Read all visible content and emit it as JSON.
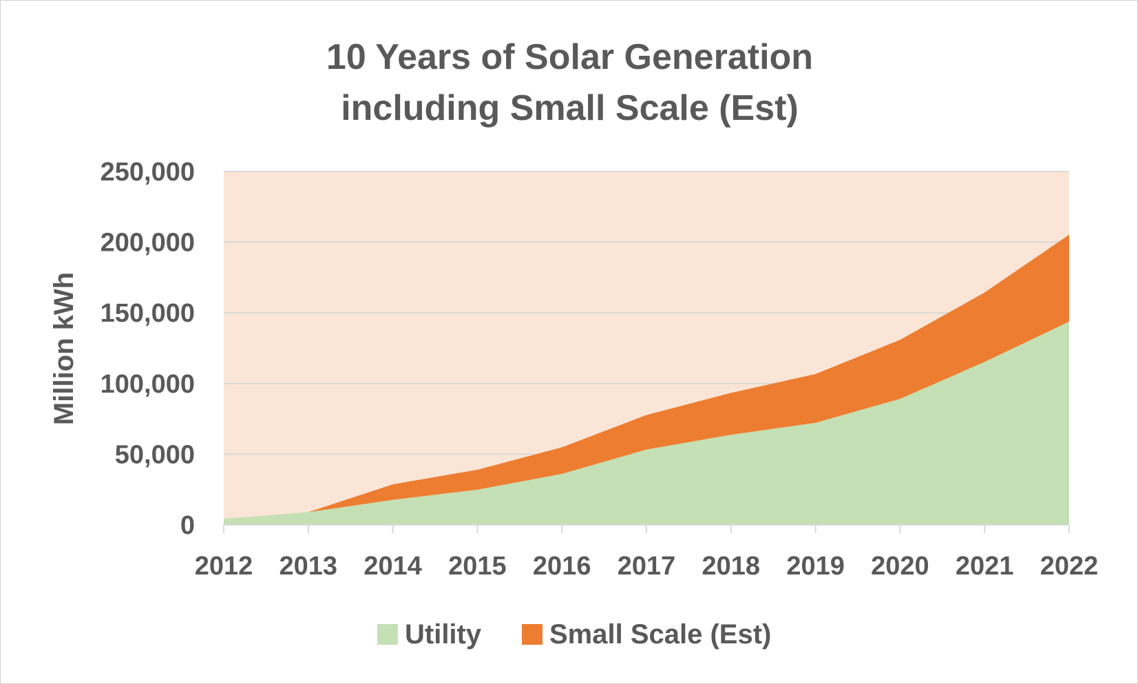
{
  "chart_data": {
    "type": "area",
    "stacked": true,
    "title_line1": "10 Years of Solar Generation",
    "title_line2": "including Small Scale (Est)",
    "xlabel": "",
    "ylabel": "Million kWh",
    "ylim": [
      0,
      250000
    ],
    "yticks": [
      0,
      50000,
      100000,
      150000,
      200000,
      250000
    ],
    "ytick_labels": [
      "0",
      "50,000",
      "100,000",
      "150,000",
      "200,000",
      "250,000"
    ],
    "grid": true,
    "legend_position": "bottom",
    "categories": [
      "2012",
      "2013",
      "2014",
      "2015",
      "2016",
      "2017",
      "2018",
      "2019",
      "2020",
      "2021",
      "2022"
    ],
    "series": [
      {
        "name": "Utility",
        "color": "#c5e0b4",
        "values": [
          4300,
          9000,
          17700,
          24900,
          36100,
          53300,
          63800,
          72200,
          89200,
          115300,
          143800
        ]
      },
      {
        "name": "Small Scale (Est)",
        "color": "#ed7d31",
        "values": [
          0,
          0,
          11000,
          14100,
          18800,
          24400,
          29600,
          34500,
          41700,
          49100,
          61500
        ]
      }
    ],
    "plot_background": "#fbe5d6"
  }
}
